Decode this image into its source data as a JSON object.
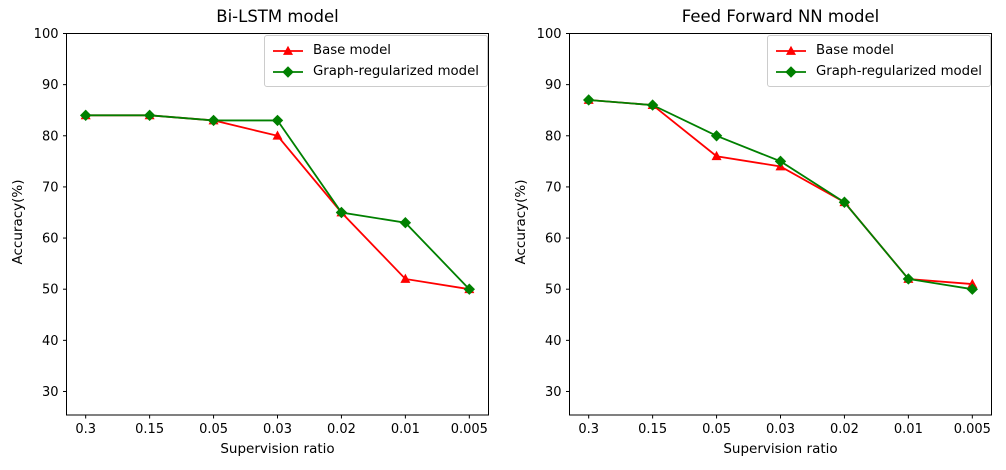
{
  "figure": {
    "background": "#ffffff",
    "axis_color": "#000000"
  },
  "chart_data": [
    {
      "type": "line",
      "title": "Bi-LSTM model",
      "xlabel": "Supervision ratio",
      "ylabel": "Accuracy(%)",
      "categories": [
        "0.3",
        "0.15",
        "0.05",
        "0.03",
        "0.02",
        "0.01",
        "0.005"
      ],
      "yticks": [
        30,
        40,
        50,
        60,
        70,
        80,
        90,
        100
      ],
      "ylim": [
        25.4,
        100
      ],
      "grid": false,
      "legend_position": "upper right",
      "series": [
        {
          "name": "Base model",
          "color": "#ff0000",
          "marker": "triangle",
          "values": [
            84,
            84,
            83,
            80,
            65,
            52,
            50
          ]
        },
        {
          "name": "Graph-regularized model",
          "color": "#008000",
          "marker": "diamond",
          "values": [
            84,
            84,
            83,
            83,
            65,
            63,
            50
          ]
        }
      ]
    },
    {
      "type": "line",
      "title": "Feed Forward NN model",
      "xlabel": "Supervision ratio",
      "ylabel": "Accuracy(%)",
      "categories": [
        "0.3",
        "0.15",
        "0.05",
        "0.03",
        "0.02",
        "0.01",
        "0.005"
      ],
      "yticks": [
        30,
        40,
        50,
        60,
        70,
        80,
        90,
        100
      ],
      "ylim": [
        25.4,
        100
      ],
      "grid": false,
      "legend_position": "upper right",
      "series": [
        {
          "name": "Base model",
          "color": "#ff0000",
          "marker": "triangle",
          "values": [
            87,
            86,
            76,
            74,
            67,
            52,
            51
          ]
        },
        {
          "name": "Graph-regularized model",
          "color": "#008000",
          "marker": "diamond",
          "values": [
            87,
            86,
            80,
            75,
            67,
            52,
            50
          ]
        }
      ]
    }
  ]
}
